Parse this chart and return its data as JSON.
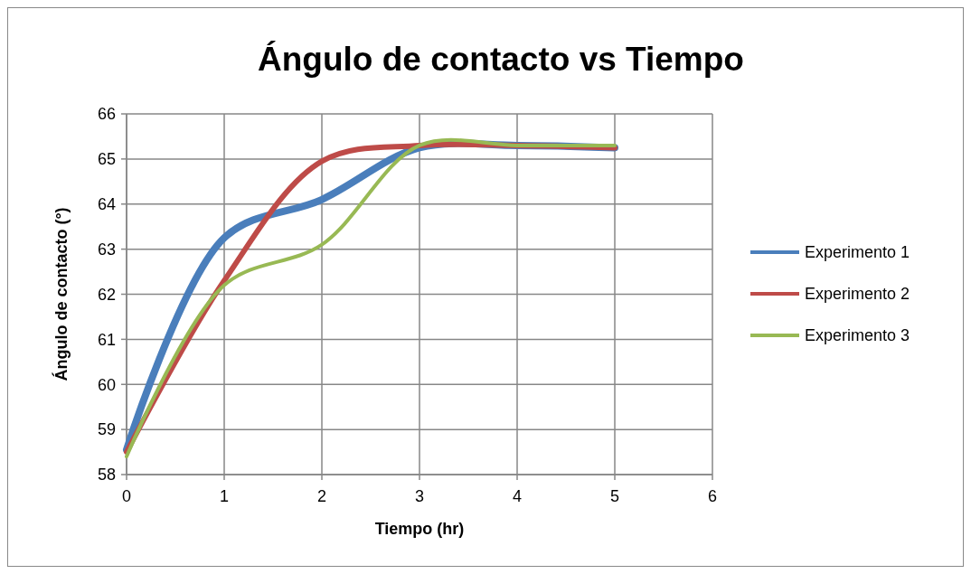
{
  "chart_data": {
    "type": "line",
    "title": "Ángulo de contacto vs Tiempo",
    "xlabel": "Tiempo (hr)",
    "ylabel": "Ángulo de contacto (°)",
    "x": [
      0,
      1,
      2,
      3,
      4,
      5
    ],
    "series": [
      {
        "name": "Experimento 1",
        "color": "#4a7ebb",
        "values": [
          58.55,
          63.25,
          64.1,
          65.25,
          65.3,
          65.25
        ]
      },
      {
        "name": "Experimento 2",
        "color": "#be4b48",
        "values": [
          58.5,
          62.3,
          64.95,
          65.3,
          65.3,
          65.25
        ]
      },
      {
        "name": "Experimento 3",
        "color": "#98b954",
        "values": [
          58.4,
          62.2,
          63.1,
          65.3,
          65.3,
          65.3
        ]
      }
    ],
    "xlim": [
      0,
      6
    ],
    "xticks": [
      0,
      1,
      2,
      3,
      4,
      5,
      6
    ],
    "ylim": [
      58,
      66
    ],
    "yticks": [
      58,
      59,
      60,
      61,
      62,
      63,
      64,
      65,
      66
    ],
    "grid": true,
    "legend": "right",
    "marker": "none",
    "line_style": "solid"
  }
}
